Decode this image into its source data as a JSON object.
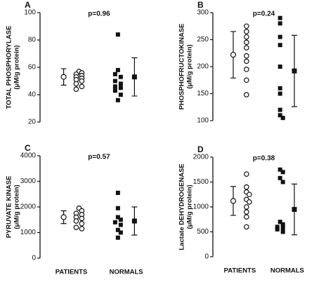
{
  "chart_data": [
    {
      "type": "dot",
      "panel": "A",
      "annotation": "p=0.96",
      "y_label": "TOTAL PHOSPHORYLASE",
      "y_unit": "(μM/g protein)",
      "ylim": [
        20,
        100
      ],
      "yticks": [
        20,
        40,
        60,
        80,
        100
      ],
      "groups": [
        {
          "marker": "open-circle",
          "values": [
            57,
            56,
            55,
            54,
            53,
            52,
            51,
            50,
            48,
            46,
            44
          ],
          "mean": 53,
          "error": 6
        },
        {
          "marker": "filled-square",
          "values": [
            84,
            58,
            55,
            53,
            50,
            48,
            46,
            45,
            43,
            40,
            36
          ],
          "mean": 53,
          "error": 14
        }
      ]
    },
    {
      "type": "dot",
      "panel": "B",
      "annotation": "p=0.24",
      "y_label": "PHOSPHOFRUCTOKINASE",
      "y_unit": "(μM/g protein)",
      "ylim": [
        100,
        300
      ],
      "yticks": [
        100,
        150,
        200,
        250,
        300
      ],
      "groups": [
        {
          "marker": "open-circle",
          "values": [
            275,
            265,
            255,
            245,
            235,
            220,
            210,
            195,
            175,
            148
          ],
          "mean": 222,
          "error": 43
        },
        {
          "marker": "filled-square",
          "values": [
            290,
            280,
            255,
            240,
            200,
            160,
            150,
            120,
            110,
            105
          ],
          "mean": 192,
          "error": 66
        }
      ]
    },
    {
      "type": "dot",
      "panel": "C",
      "annotation": "p=0.57",
      "y_label": "PYRUVATE KINASE",
      "y_unit": "(μM/g protein)",
      "ylim": [
        0,
        4000
      ],
      "yticks": [
        0,
        1000,
        2000,
        3000,
        4000
      ],
      "categories": [
        "PATIENTS",
        "NORMALS"
      ],
      "groups": [
        {
          "marker": "open-circle",
          "values": [
            1950,
            1850,
            1750,
            1700,
            1600,
            1550,
            1450,
            1350,
            1200,
            1150
          ],
          "mean": 1600,
          "error": 250
        },
        {
          "marker": "filled-square",
          "values": [
            2550,
            1950,
            1600,
            1500,
            1400,
            1300,
            1100,
            1000,
            800
          ],
          "mean": 1450,
          "error": 550
        }
      ]
    },
    {
      "type": "dot",
      "panel": "D",
      "annotation": "p=0.38",
      "y_label": "Lactate DEHYDROGENASE",
      "y_unit": "(μM/g protein)",
      "ylim": [
        0,
        2000
      ],
      "yticks": [
        0,
        500,
        1000,
        1500,
        2000
      ],
      "categories": [
        "PATIENTS",
        "NORMALS"
      ],
      "groups": [
        {
          "marker": "open-circle",
          "values": [
            1660,
            1400,
            1300,
            1250,
            1150,
            1100,
            1000,
            900,
            800,
            600
          ],
          "mean": 1120,
          "error": 290
        },
        {
          "marker": "filled-square",
          "values": [
            1750,
            1700,
            1580,
            1500,
            700,
            650,
            600,
            580,
            550,
            500
          ],
          "mean": 950,
          "error": 510
        }
      ]
    }
  ]
}
